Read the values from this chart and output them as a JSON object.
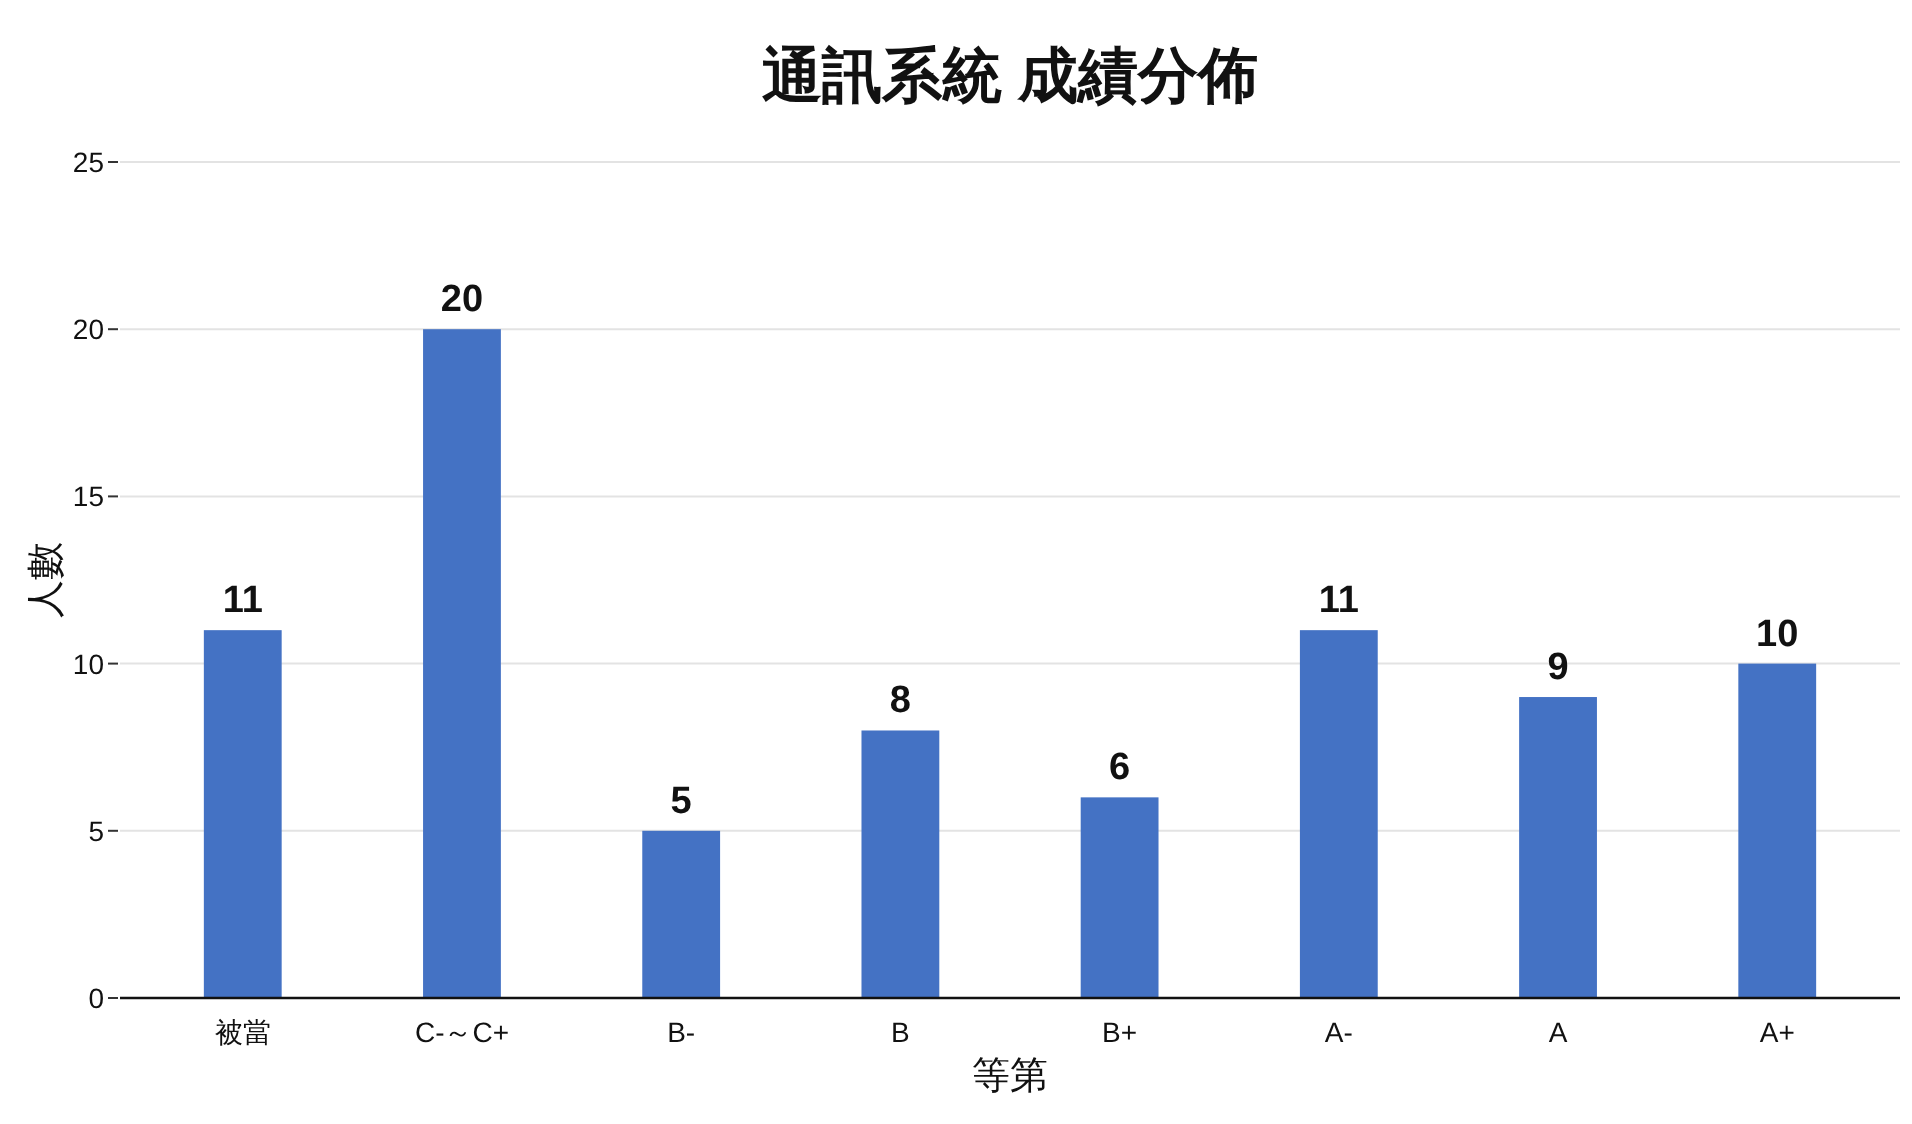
{
  "chart_data": {
    "type": "bar",
    "title": "通訊系統 成績分佈",
    "xlabel": "等第",
    "ylabel": "人數",
    "categories": [
      "被當",
      "C-～C+",
      "B-",
      "B",
      "B+",
      "A-",
      "A",
      "A+"
    ],
    "values": [
      11,
      20,
      5,
      8,
      6,
      11,
      9,
      10
    ],
    "color": "#4472c4",
    "ylim": [
      0,
      25
    ],
    "yticks": [
      0,
      5,
      10,
      15,
      20,
      25
    ],
    "grid": "y",
    "data_labels": true
  }
}
